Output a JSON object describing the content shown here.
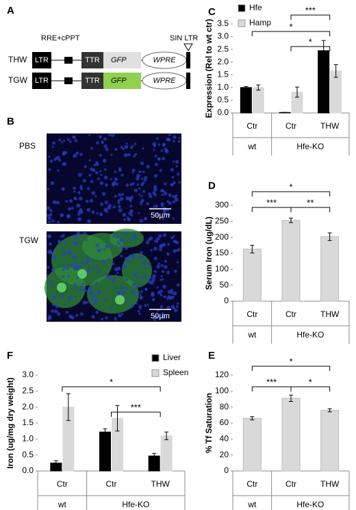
{
  "panel_a": {
    "letter": "A",
    "top_label": "RRE+cPPT",
    "end_label": "SIN LTR",
    "constructs": [
      {
        "name": "THW",
        "ltr": "LTR",
        "promoter": "TTR",
        "gene": "GFP",
        "element": "WPRE"
      },
      {
        "name": "TGW",
        "ltr": "LTR",
        "promoter": "TTR",
        "gene": "GFP",
        "element": "WPRE"
      }
    ]
  },
  "panel_b": {
    "letter": "B",
    "images": [
      {
        "label": "PBS",
        "scale": "50µm"
      },
      {
        "label": "TGW",
        "scale": "50µm"
      }
    ]
  },
  "chart_data": [
    {
      "type": "bar",
      "panel": "C",
      "y_label": "Expression (Rel to wt ctr)",
      "categories": [
        "Ctr",
        "Ctr",
        "THW"
      ],
      "groups": [
        "wt",
        "Hfe-KO"
      ],
      "series": [
        {
          "name": "Hfe",
          "color": "#000000",
          "values": [
            1.0,
            0.02,
            2.45
          ],
          "errors": [
            0.04,
            0.0,
            0.4
          ]
        },
        {
          "name": "Hamp",
          "color": "#d9d9d9",
          "values": [
            1.0,
            0.82,
            1.65
          ],
          "errors": [
            0.1,
            0.2,
            0.25
          ]
        }
      ],
      "ylim": [
        0,
        3.5
      ],
      "yticks": [
        {
          "value": 0,
          "label": "0.0"
        },
        0.5,
        {
          "value": 1,
          "label": "1.0"
        },
        1.5,
        {
          "value": 2,
          "label": "2.0"
        },
        2.5,
        {
          "value": 3,
          "label": "3.0"
        },
        3.5
      ],
      "annotations": [
        "***",
        "*",
        "*"
      ]
    },
    {
      "type": "bar",
      "panel": "D",
      "y_label": "Serum Iron (ug/dL)",
      "categories": [
        "Ctr",
        "Ctr",
        "THW"
      ],
      "groups": [
        "wt",
        "Hfe-KO"
      ],
      "color": "#d9d9d9",
      "values": [
        163,
        253,
        202
      ],
      "errors": [
        12,
        7,
        12
      ],
      "ylim": [
        0,
        300
      ],
      "yticks": [
        0,
        50,
        100,
        150,
        200,
        250,
        300
      ],
      "annotations": [
        "*",
        "***",
        "**"
      ]
    },
    {
      "type": "bar",
      "panel": "F",
      "y_label": "Iron (ug/mg dry weight)",
      "categories": [
        "Ctr",
        "Ctr",
        "THW"
      ],
      "groups": [
        "wt",
        "Hfe-KO"
      ],
      "series": [
        {
          "name": "Liver",
          "color": "#000000",
          "values": [
            0.25,
            1.22,
            0.47
          ],
          "errors": [
            0.07,
            0.1,
            0.08
          ]
        },
        {
          "name": "Spleen",
          "color": "#d9d9d9",
          "values": [
            2.0,
            1.65,
            1.1
          ],
          "errors": [
            0.42,
            0.4,
            0.12
          ]
        }
      ],
      "ylim": [
        0,
        3
      ],
      "yticks": [
        {
          "value": 0,
          "label": "0.0"
        },
        0.5,
        {
          "value": 1,
          "label": "1.0"
        },
        1.5,
        {
          "value": 2,
          "label": "2.0"
        },
        2.5,
        {
          "value": 3,
          "label": "3.0"
        }
      ],
      "annotations": [
        "*",
        "***"
      ]
    },
    {
      "type": "bar",
      "panel": "E",
      "y_label": "% Tf Saturation",
      "categories": [
        "Ctr",
        "Ctr",
        "THW"
      ],
      "groups": [
        "wt",
        "Hfe-KO"
      ],
      "color": "#d9d9d9",
      "values": [
        66,
        91,
        76
      ],
      "errors": [
        2,
        4,
        2
      ],
      "ylim": [
        0,
        120
      ],
      "yticks": [
        0,
        20,
        40,
        60,
        80,
        100,
        120
      ],
      "annotations": [
        "*",
        "***",
        "*"
      ]
    }
  ]
}
